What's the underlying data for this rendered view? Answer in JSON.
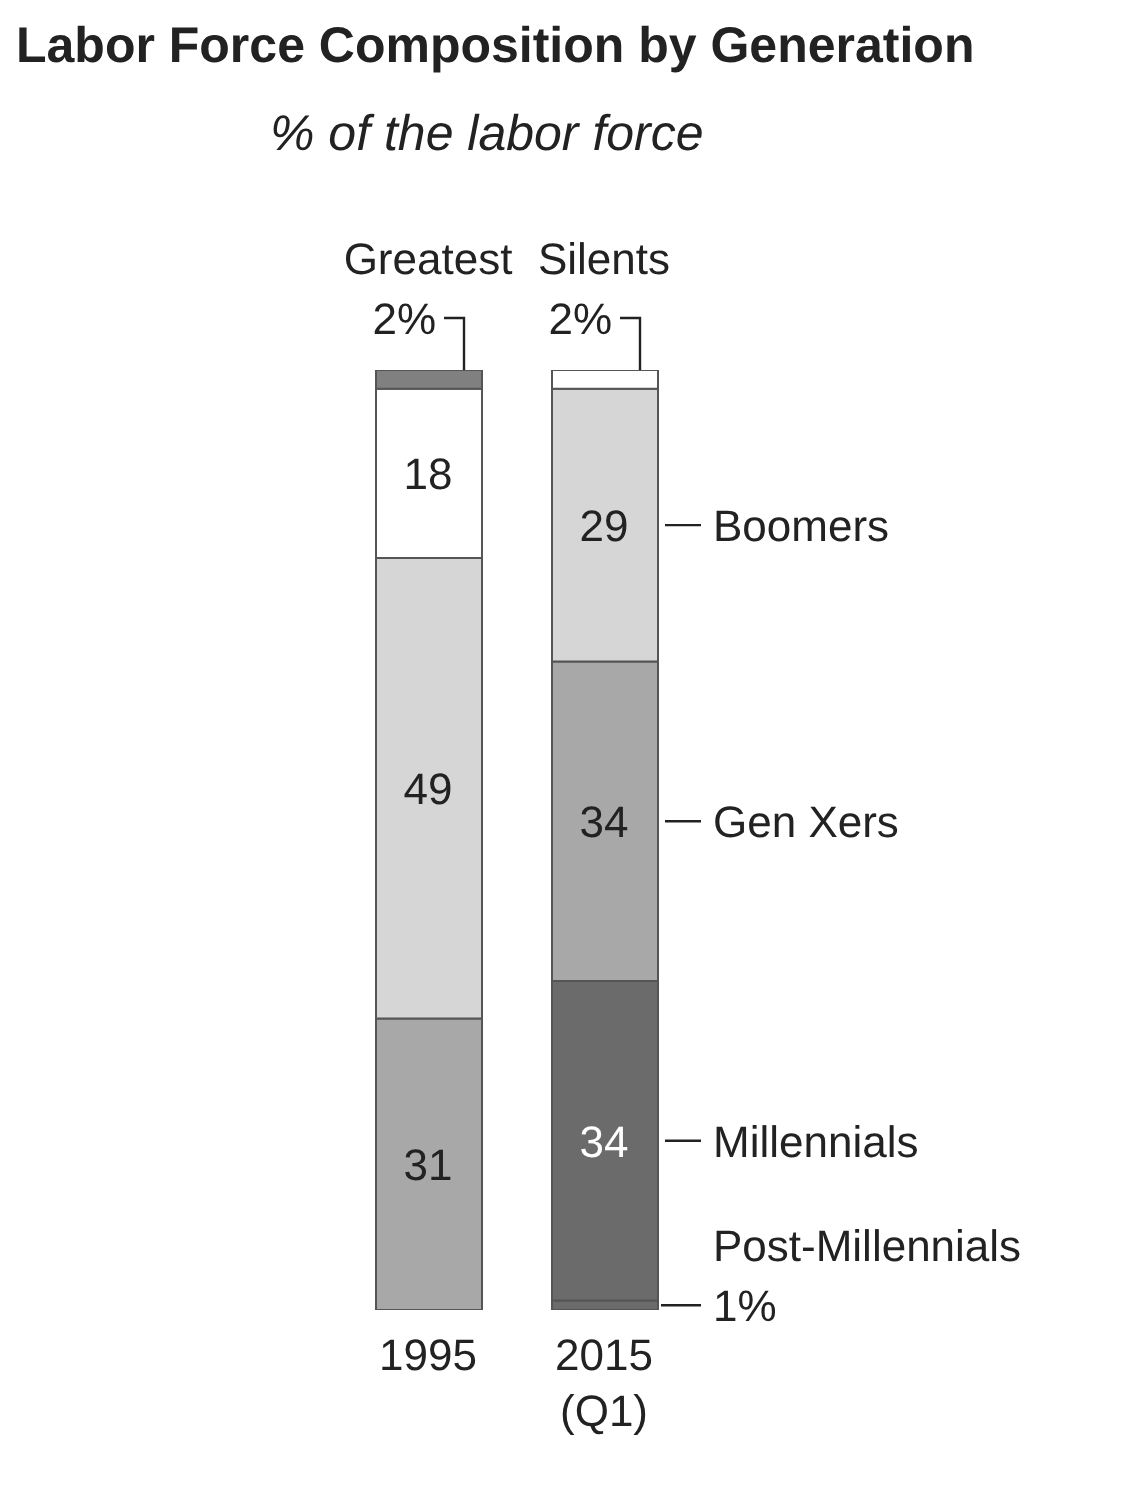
{
  "chart_data": {
    "type": "bar",
    "title": "Labor Force Composition by Generation",
    "subtitle": "% of the labor force",
    "stacked": true,
    "categories": [
      "1995",
      "2015 (Q1)"
    ],
    "series": [
      {
        "name": "Post-Millennials",
        "color": "#6b6b6b",
        "values": [
          null,
          1
        ],
        "value_labels": [
          null,
          "1%"
        ]
      },
      {
        "name": "Millennials",
        "color": "#6b6b6b",
        "values": [
          null,
          34
        ],
        "value_labels": [
          null,
          "34"
        ]
      },
      {
        "name": "Gen Xers",
        "color": "#a8a8a8",
        "values": [
          31,
          34
        ],
        "value_labels": [
          "31",
          "34"
        ]
      },
      {
        "name": "Boomers",
        "color": "#d6d6d6",
        "values": [
          49,
          29
        ],
        "value_labels": [
          "49",
          "29"
        ]
      },
      {
        "name": "Silents",
        "color": "#ffffff",
        "values": [
          18,
          2
        ],
        "value_labels": [
          "18",
          "2%"
        ]
      },
      {
        "name": "Greatest",
        "color": "#808080",
        "values": [
          2,
          null
        ],
        "value_labels": [
          "2%",
          null
        ]
      }
    ]
  }
}
